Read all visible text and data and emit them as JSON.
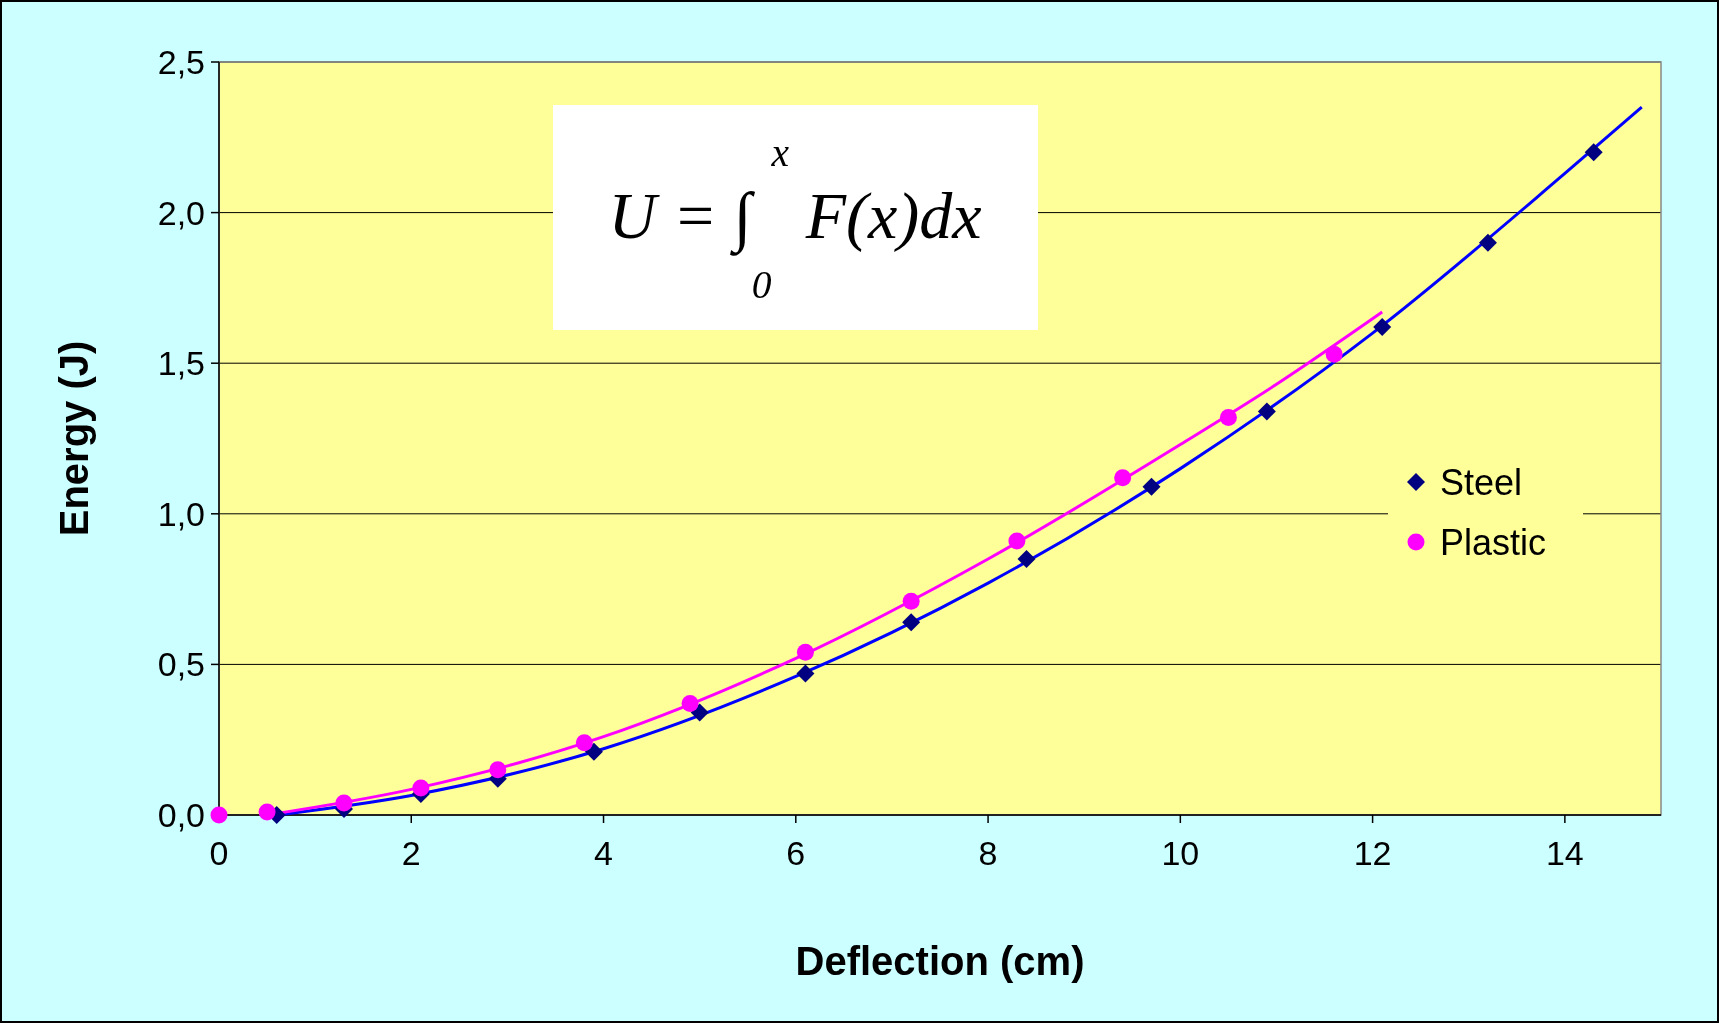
{
  "chart_data": {
    "type": "scatter",
    "xlabel": "Deflection (cm)",
    "ylabel": "Energy (J)",
    "xlim": [
      0,
      15
    ],
    "xticks": [
      0,
      2,
      4,
      6,
      8,
      10,
      12,
      14
    ],
    "ylim": [
      0,
      2.5
    ],
    "yticks": [
      {
        "value": 0,
        "label": "0,0"
      },
      {
        "value": 0.5,
        "label": "0,5"
      },
      {
        "value": 1,
        "label": "1,0"
      },
      {
        "value": 1.5,
        "label": "1,5"
      },
      {
        "value": 2,
        "label": "2,0"
      },
      {
        "value": 2.5,
        "label": "2,5"
      }
    ],
    "grid": "y",
    "legend": "right",
    "annotations": [
      "U = ∫$_{0}$$^{x}$ F(x)dx"
    ],
    "series": [
      {
        "type": "line",
        "color": "#0000ff",
        "marker": "none",
        "x": [
          0.6,
          2,
          4,
          6,
          8,
          10,
          12,
          14,
          14.8
        ],
        "values": [
          0,
          0.065,
          0.22,
          0.46,
          0.77,
          1.15,
          1.6,
          2.13,
          2.35
        ]
      },
      {
        "type": "line",
        "color": "#ff00ff",
        "marker": "none",
        "x": [
          0.5,
          2,
          4,
          6,
          8,
          10,
          11,
          12.1
        ],
        "values": [
          0,
          0.085,
          0.26,
          0.52,
          0.85,
          1.23,
          1.43,
          1.67
        ]
      },
      {
        "name": "Steel",
        "type": "scatter",
        "color": "#000080",
        "marker": "diamond",
        "x": [
          0.6,
          1.3,
          2.1,
          2.9,
          3.9,
          5.0,
          6.1,
          7.2,
          8.4,
          9.7,
          10.9,
          12.1,
          13.2,
          14.3
        ],
        "values": [
          0,
          0.02,
          0.07,
          0.12,
          0.21,
          0.34,
          0.47,
          0.64,
          0.85,
          1.09,
          1.34,
          1.62,
          1.9,
          2.2
        ]
      },
      {
        "name": "Plastic",
        "type": "scatter",
        "color": "#ff00ff",
        "marker": "circle",
        "x": [
          0,
          0.5,
          1.3,
          2.1,
          2.9,
          3.8,
          4.9,
          6.1,
          7.2,
          8.3,
          9.4,
          10.5,
          11.6
        ],
        "values": [
          0,
          0.01,
          0.04,
          0.09,
          0.15,
          0.24,
          0.37,
          0.54,
          0.71,
          0.91,
          1.12,
          1.32,
          1.53
        ]
      }
    ]
  }
}
